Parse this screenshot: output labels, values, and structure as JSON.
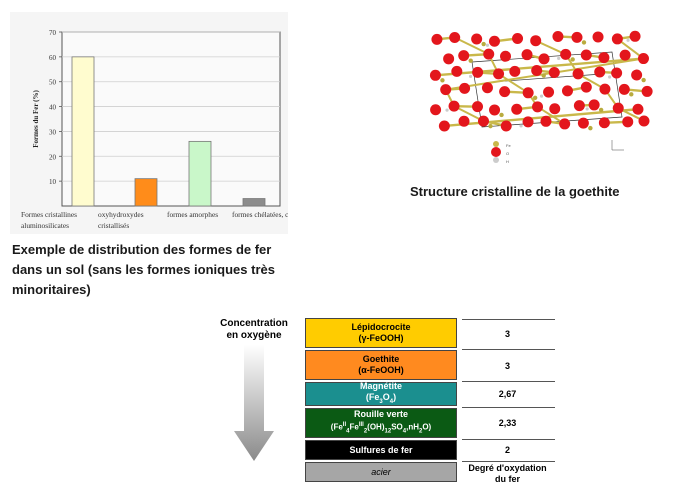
{
  "chart_data": {
    "type": "bar",
    "ylabel": "Formes du Fer (%)",
    "ylim": [
      0,
      70
    ],
    "yticks": [
      10,
      20,
      30,
      40,
      50,
      60,
      70
    ],
    "categories": [
      [
        "Formes cristallines",
        "aluminosilicates"
      ],
      [
        "oxyhydroxydes",
        "cristallisés"
      ],
      [
        "formes amorphes"
      ],
      [
        "formes chélatées, complexes orga."
      ]
    ],
    "values": [
      60,
      11,
      26,
      3
    ],
    "colors": [
      "#fffccf",
      "#ff8c1a",
      "#c9f7c9",
      "#8c8c8c"
    ]
  },
  "chart_caption": [
    "Exemple de distribution des formes de fer",
    "dans un sol (sans les formes ioniques très",
    "minoritaires)"
  ],
  "crystal_caption": "Structure cristalline de la goethite",
  "oxygen_label": [
    "Concentration",
    "en oxygène"
  ],
  "table": {
    "rows": [
      {
        "line1": "Lépidocrocite",
        "line2": "(γ-FeOOH)",
        "degree": "3",
        "color": "#ffcc00"
      },
      {
        "line1": "Goethite",
        "line2": "(α-FeOOH)",
        "degree": "3",
        "color": "#ff8a1f"
      },
      {
        "line1": "Magnétite",
        "line2": "(Fe3O4)",
        "degree": "2,67",
        "color": "#1b8f8f"
      },
      {
        "line1": "Rouille verte",
        "line2": "(FeII4FeIII2(OH)12SO4,nH2O)",
        "degree": "2,33",
        "color": "#0b5a14"
      },
      {
        "line1": "Sulfures de fer",
        "line2": "",
        "degree": "2",
        "color": "#000000"
      },
      {
        "line1": "acier",
        "line2": "",
        "degree": "",
        "color": "#a6a6a6"
      }
    ],
    "degree_header": [
      "Degré d'oxydation",
      "du fer"
    ]
  },
  "molecule": {
    "atom_color": "#e3161c",
    "bond_color": "#c9b84a",
    "legend": [
      "Fe",
      "O",
      "H"
    ]
  }
}
